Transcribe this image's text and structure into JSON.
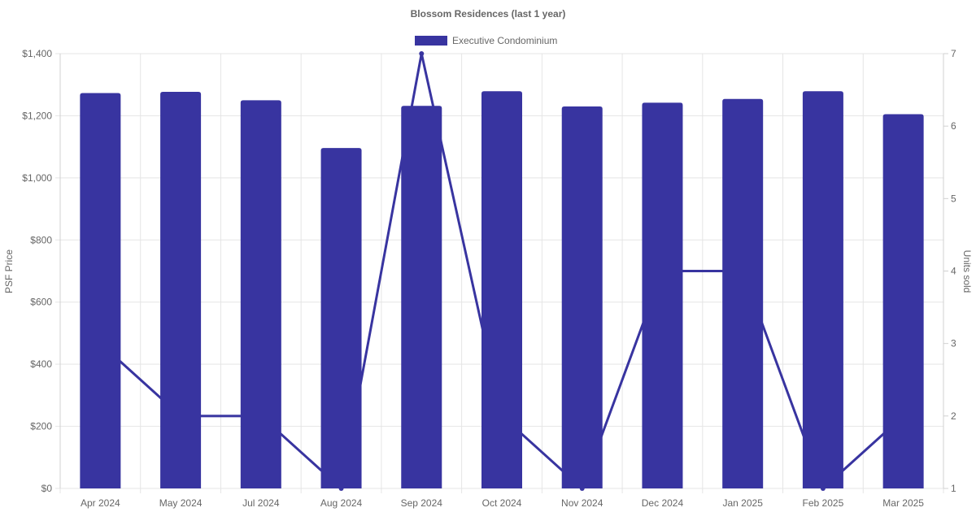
{
  "chart_data": {
    "type": "bar",
    "title": "Blossom Residences (last 1 year)",
    "categories": [
      "Apr 2024",
      "May 2024",
      "Jul 2024",
      "Aug 2024",
      "Sep 2024",
      "Oct 2024",
      "Nov 2024",
      "Dec 2024",
      "Jan 2025",
      "Feb 2025",
      "Mar 2025"
    ],
    "series": [
      {
        "name": "Executive Condominium",
        "type": "bar",
        "axis": "left",
        "values": [
          1273,
          1277,
          1250,
          1096,
          1232,
          1279,
          1230,
          1242,
          1254,
          1279,
          1205
        ],
        "color": "#3834a0"
      },
      {
        "type": "line",
        "axis": "right",
        "values": [
          3,
          2,
          2,
          1,
          7,
          2,
          1,
          4,
          4,
          1,
          2
        ],
        "color": "#3834a0"
      }
    ],
    "left_axis": {
      "label": "PSF Price",
      "ylim": [
        0,
        1400
      ],
      "ticks": [
        0,
        200,
        400,
        600,
        800,
        1000,
        1200,
        1400
      ],
      "tick_labels": [
        "$0",
        "$200",
        "$400",
        "$600",
        "$800",
        "$1,000",
        "$1,200",
        "$1,400"
      ]
    },
    "right_axis": {
      "label": "Units sold",
      "ylim": [
        1,
        7
      ],
      "ticks": [
        1,
        2,
        3,
        4,
        5,
        6,
        7
      ],
      "tick_labels": [
        "1",
        "2",
        "3",
        "4",
        "5",
        "6",
        "7"
      ]
    },
    "grid": true,
    "legend_position": "top-center"
  }
}
